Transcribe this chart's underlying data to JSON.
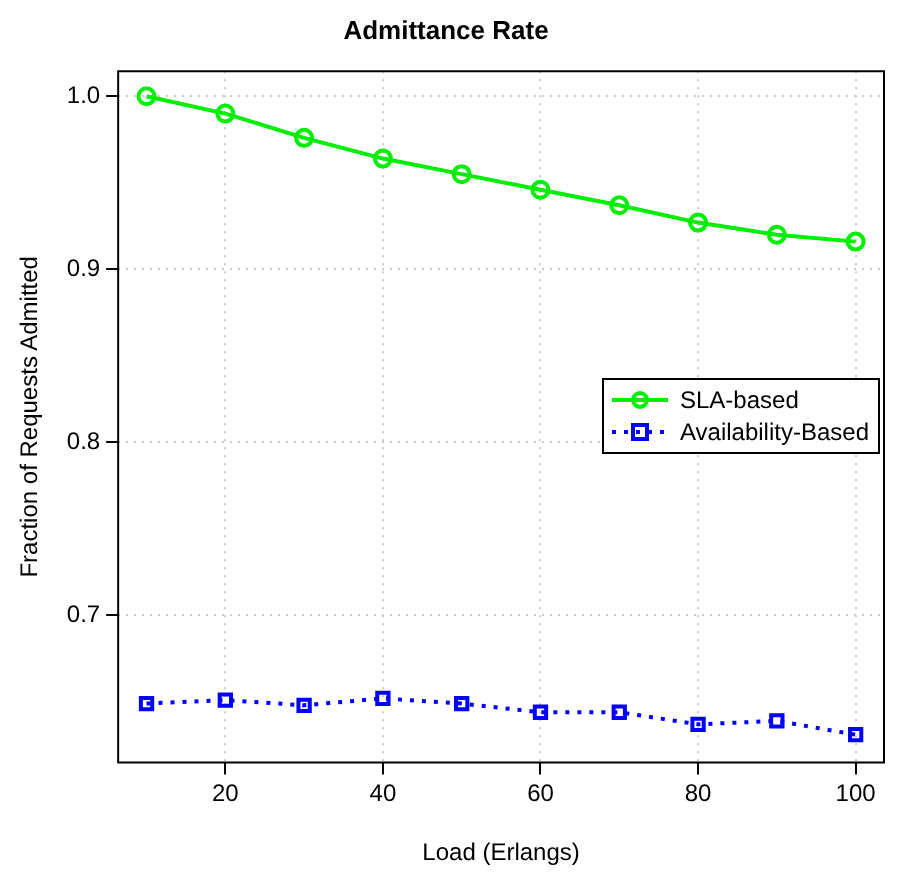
{
  "chart_data": {
    "type": "line",
    "title": "Admittance Rate",
    "xlabel": "Load (Erlangs)",
    "ylabel": "Fraction of Requests Admitted",
    "x": [
      10,
      20,
      30,
      40,
      50,
      60,
      70,
      80,
      90,
      100
    ],
    "series": [
      {
        "name": "SLA-based",
        "color": "#00ee00",
        "marker": "circle",
        "line_style": "solid",
        "values": [
          1.0,
          0.99,
          0.976,
          0.964,
          0.955,
          0.946,
          0.937,
          0.927,
          0.92,
          0.916
        ]
      },
      {
        "name": "Availability-Based",
        "color": "#0000ff",
        "marker": "square",
        "line_style": "dotted",
        "values": [
          0.649,
          0.651,
          0.648,
          0.652,
          0.649,
          0.644,
          0.644,
          0.637,
          0.639,
          0.631
        ]
      }
    ],
    "xlim": [
      6.4,
      103.6
    ],
    "ylim": [
      0.615,
      1.0145
    ],
    "xticks": [
      20,
      40,
      60,
      80,
      100
    ],
    "yticks": [
      0.7,
      0.8,
      0.9,
      {
        "value": 1,
        "label": "1.0"
      }
    ],
    "grid": true,
    "legend": "right"
  }
}
